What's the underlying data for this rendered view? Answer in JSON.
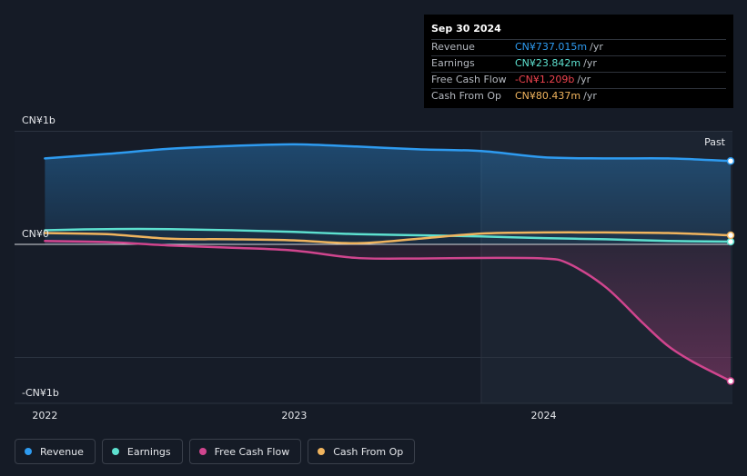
{
  "tooltip": {
    "date": "Sep 30 2024",
    "rows": [
      {
        "label": "Revenue",
        "value": "CN¥737.015m",
        "unit": "/yr",
        "color": "#2e9bf0"
      },
      {
        "label": "Earnings",
        "value": "CN¥23.842m",
        "unit": "/yr",
        "color": "#5de0cf"
      },
      {
        "label": "Free Cash Flow",
        "value": "-CN¥1.209b",
        "unit": "/yr",
        "color": "#f0444f"
      },
      {
        "label": "Cash From Op",
        "value": "CN¥80.437m",
        "unit": "/yr",
        "color": "#f0b45e"
      }
    ]
  },
  "legend": [
    {
      "label": "Revenue",
      "color": "#2e9bf0"
    },
    {
      "label": "Earnings",
      "color": "#5de0cf"
    },
    {
      "label": "Free Cash Flow",
      "color": "#d0458e"
    },
    {
      "label": "Cash From Op",
      "color": "#f0b45e"
    }
  ],
  "chart_data": {
    "type": "line",
    "past_label": "Past",
    "y_tick_labels": [
      "CN¥1b",
      "CN¥0",
      "-CN¥1b"
    ],
    "y_ticks": [
      1000,
      0,
      -1000
    ],
    "ylim": [
      -1150,
      1000
    ],
    "x_tick_labels": [
      "2022",
      "2023",
      "2024"
    ],
    "x_ticks": [
      2022.0,
      2023.0,
      2024.0
    ],
    "xlim": [
      2021.995,
      2024.75
    ],
    "past_start": 2023.75,
    "grid": true,
    "legend_position": "bottom",
    "series": [
      {
        "name": "Revenue",
        "color": "#2e9bf0",
        "fill": true,
        "x": [
          2022.0,
          2022.25,
          2022.5,
          2022.75,
          2023.0,
          2023.25,
          2023.5,
          2023.75,
          2024.0,
          2024.25,
          2024.5,
          2024.75
        ],
        "y": [
          760,
          800,
          845,
          870,
          885,
          865,
          840,
          825,
          770,
          760,
          760,
          737
        ]
      },
      {
        "name": "Earnings",
        "color": "#5de0cf",
        "fill": false,
        "x": [
          2022.0,
          2022.25,
          2022.5,
          2022.75,
          2023.0,
          2023.25,
          2023.5,
          2023.75,
          2024.0,
          2024.25,
          2024.5,
          2024.75
        ],
        "y": [
          125,
          135,
          135,
          125,
          110,
          90,
          80,
          70,
          55,
          45,
          30,
          24
        ]
      },
      {
        "name": "Free Cash Flow",
        "color": "#d0458e",
        "fill": true,
        "x": [
          2022.0,
          2022.25,
          2022.5,
          2022.75,
          2023.0,
          2023.25,
          2023.5,
          2023.75,
          2024.0,
          2024.1,
          2024.25,
          2024.4,
          2024.5,
          2024.6,
          2024.75
        ],
        "y": [
          30,
          20,
          -10,
          -30,
          -55,
          -120,
          -125,
          -120,
          -125,
          -170,
          -380,
          -700,
          -900,
          -1040,
          -1209
        ]
      },
      {
        "name": "Cash From Op",
        "color": "#f0b45e",
        "fill": false,
        "x": [
          2022.0,
          2022.25,
          2022.5,
          2022.75,
          2023.0,
          2023.25,
          2023.5,
          2023.75,
          2024.0,
          2024.25,
          2024.5,
          2024.75
        ],
        "y": [
          100,
          90,
          50,
          45,
          35,
          10,
          50,
          95,
          105,
          105,
          100,
          80
        ]
      }
    ]
  }
}
